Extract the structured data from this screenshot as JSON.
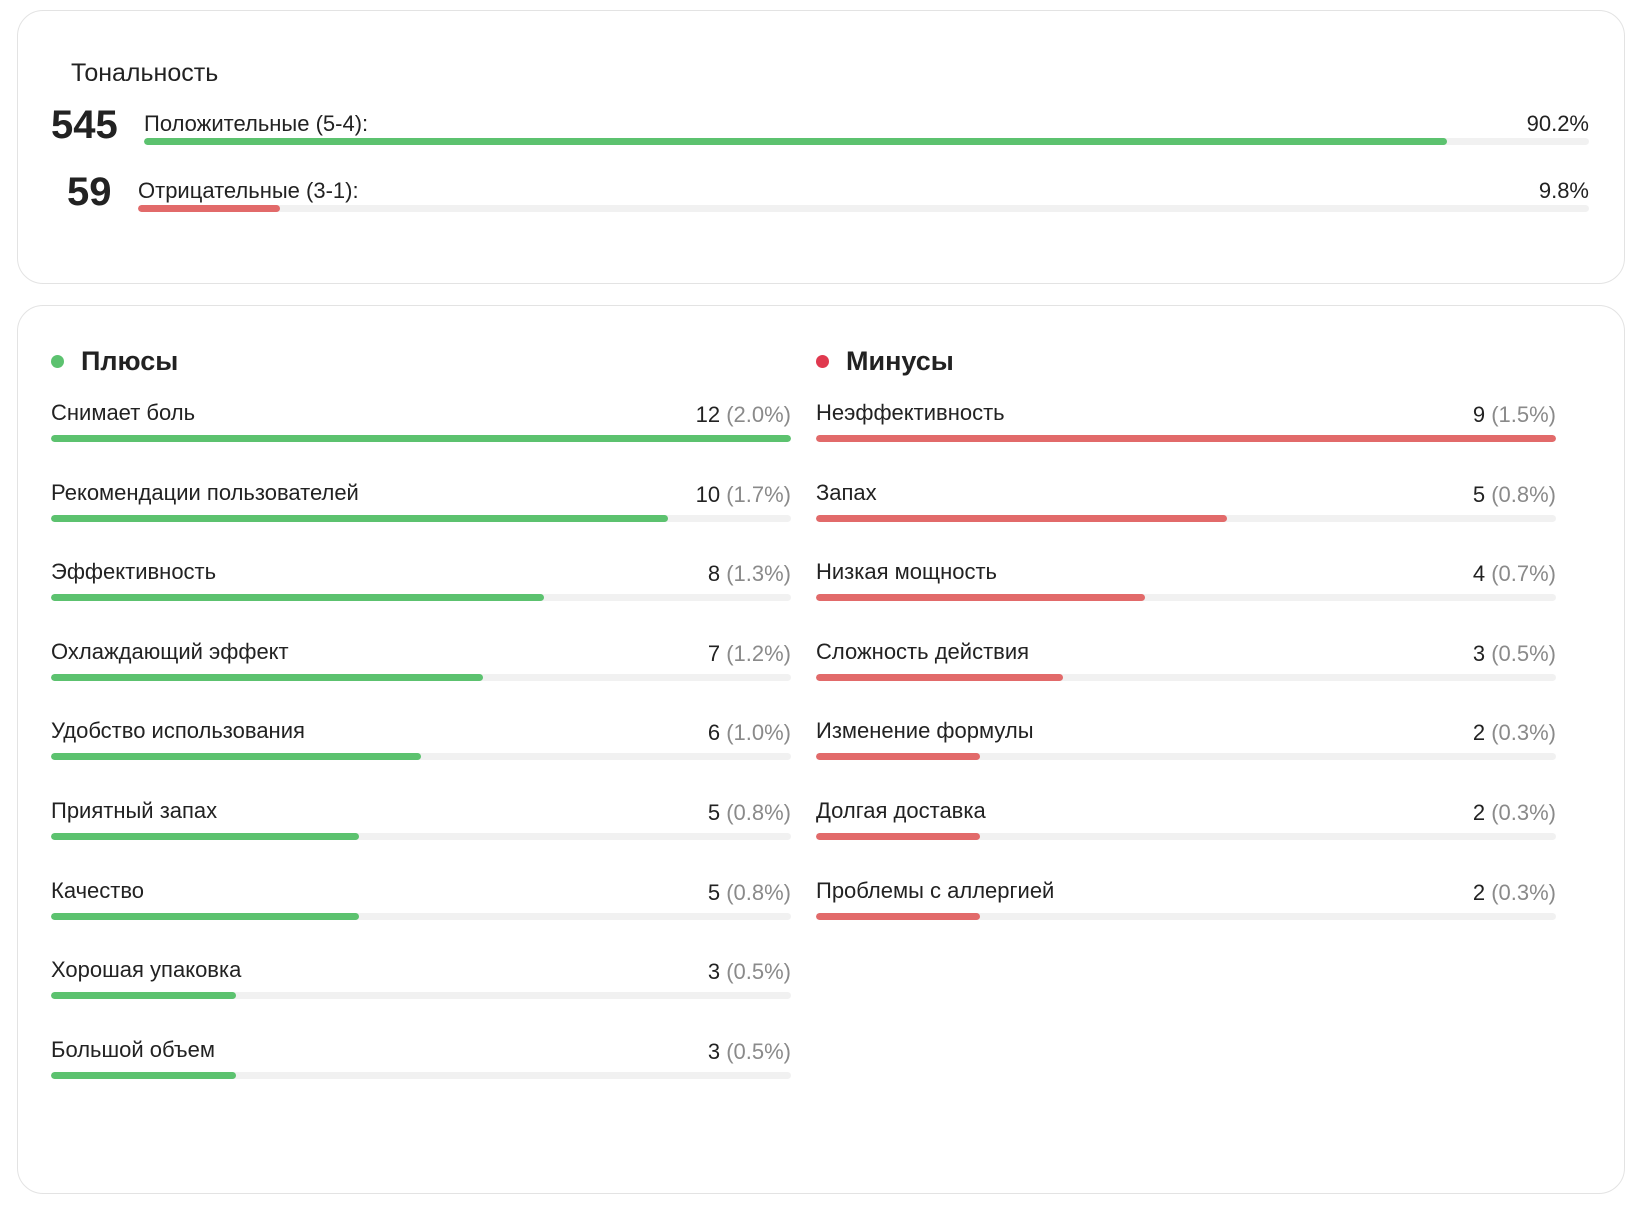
{
  "colors": {
    "positive": "#5cc26f",
    "negative": "#e26a6a",
    "negative_dot": "#e0394f",
    "track": "#f1f1f1"
  },
  "tonality": {
    "title": "Тональность",
    "positive": {
      "count": "545",
      "label": "Положительные (5-4):",
      "percent": "90.2%",
      "share": 0.902
    },
    "negative": {
      "count": "59",
      "label": "Отрицательные (3-1):",
      "percent": "9.8%",
      "share": 0.098
    }
  },
  "pros": {
    "title": "Плюсы",
    "items": [
      {
        "label": "Снимает боль",
        "count": "12",
        "percent": "(2.0%)",
        "value": 12
      },
      {
        "label": "Рекомендации пользователей",
        "count": "10",
        "percent": "(1.7%)",
        "value": 10
      },
      {
        "label": "Эффективность",
        "count": "8",
        "percent": "(1.3%)",
        "value": 8
      },
      {
        "label": "Охлаждающий эффект",
        "count": "7",
        "percent": "(1.2%)",
        "value": 7
      },
      {
        "label": "Удобство использования",
        "count": "6",
        "percent": "(1.0%)",
        "value": 6
      },
      {
        "label": "Приятный запах",
        "count": "5",
        "percent": "(0.8%)",
        "value": 5
      },
      {
        "label": "Качество",
        "count": "5",
        "percent": "(0.8%)",
        "value": 5
      },
      {
        "label": "Хорошая упаковка",
        "count": "3",
        "percent": "(0.5%)",
        "value": 3
      },
      {
        "label": "Большой объем",
        "count": "3",
        "percent": "(0.5%)",
        "value": 3
      }
    ]
  },
  "cons": {
    "title": "Минусы",
    "items": [
      {
        "label": "Неэффективность",
        "count": "9",
        "percent": "(1.5%)",
        "value": 9
      },
      {
        "label": "Запах",
        "count": "5",
        "percent": "(0.8%)",
        "value": 5
      },
      {
        "label": "Низкая мощность",
        "count": "4",
        "percent": "(0.7%)",
        "value": 4
      },
      {
        "label": "Сложность действия",
        "count": "3",
        "percent": "(0.5%)",
        "value": 3
      },
      {
        "label": "Изменение формулы",
        "count": "2",
        "percent": "(0.3%)",
        "value": 2
      },
      {
        "label": "Долгая доставка",
        "count": "2",
        "percent": "(0.3%)",
        "value": 2
      },
      {
        "label": "Проблемы с аллергией",
        "count": "2",
        "percent": "(0.3%)",
        "value": 2
      }
    ]
  }
}
